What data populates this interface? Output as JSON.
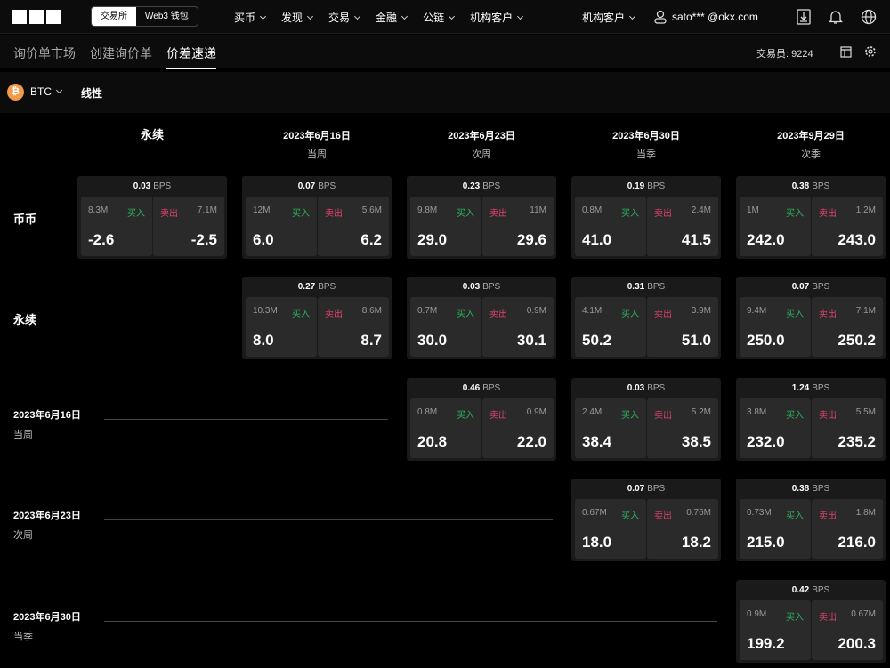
{
  "header": {
    "exchange_tab": "交易所",
    "web3_tab": "Web3 钱包",
    "nav": [
      "买币",
      "发现",
      "交易",
      "金融",
      "公链",
      "机构客户"
    ],
    "inst": "机构客户",
    "user": "sato*** @okx.com"
  },
  "subtabs": [
    "询价单市场",
    "创建询价单",
    "价差速递"
  ],
  "active_subtab": "价差速递",
  "trader": "交易员: 9224",
  "coin": {
    "symbol": "BTC",
    "type": "线性",
    "icon": "bitcoin-icon",
    "color": "#f2994a"
  },
  "colors": {
    "buy": "#2db35d",
    "sell": "#e0426b"
  },
  "labels": {
    "buy": "买入",
    "sell": "卖出",
    "unit": "BPS"
  },
  "columns": [
    {
      "title": "永续",
      "sub": ""
    },
    {
      "title": "2023年6月16日",
      "sub": "当周"
    },
    {
      "title": "2023年6月23日",
      "sub": "次周"
    },
    {
      "title": "2023年6月30日",
      "sub": "当季"
    },
    {
      "title": "2023年9月29日",
      "sub": "次季"
    }
  ],
  "rows": [
    {
      "title": "币币",
      "sub": "",
      "cells": [
        {
          "bps": "0.03",
          "bq": "8.3M",
          "sq": "7.1M",
          "bp": "-2.6",
          "sp": "-2.5"
        },
        {
          "bps": "0.07",
          "bq": "12M",
          "sq": "5.6M",
          "bp": "6.0",
          "sp": "6.2"
        },
        {
          "bps": "0.23",
          "bq": "9.8M",
          "sq": "11M",
          "bp": "29.0",
          "sp": "29.6"
        },
        {
          "bps": "0.19",
          "bq": "0.8M",
          "sq": "2.4M",
          "bp": "41.0",
          "sp": "41.5"
        },
        {
          "bps": "0.38",
          "bq": "1M",
          "sq": "1.2M",
          "bp": "242.0",
          "sp": "243.0"
        }
      ]
    },
    {
      "title": "永续",
      "sub": "",
      "cells": [
        null,
        {
          "bps": "0.27",
          "bq": "10.3M",
          "sq": "8.6M",
          "bp": "8.0",
          "sp": "8.7"
        },
        {
          "bps": "0.03",
          "bq": "0.7M",
          "sq": "0.9M",
          "bp": "30.0",
          "sp": "30.1"
        },
        {
          "bps": "0.31",
          "bq": "4.1M",
          "sq": "3.9M",
          "bp": "50.2",
          "sp": "51.0"
        },
        {
          "bps": "0.07",
          "bq": "9.4M",
          "sq": "7.1M",
          "bp": "250.0",
          "sp": "250.2"
        }
      ]
    },
    {
      "title": "2023年6月16日",
      "sub": "当周",
      "cells": [
        null,
        null,
        {
          "bps": "0.46",
          "bq": "0.8M",
          "sq": "0.9M",
          "bp": "20.8",
          "sp": "22.0"
        },
        {
          "bps": "0.03",
          "bq": "2.4M",
          "sq": "5.2M",
          "bp": "38.4",
          "sp": "38.5"
        },
        {
          "bps": "1.24",
          "bq": "3.8M",
          "sq": "5.5M",
          "bp": "232.0",
          "sp": "235.2"
        }
      ]
    },
    {
      "title": "2023年6月23日",
      "sub": "次周",
      "cells": [
        null,
        null,
        null,
        {
          "bps": "0.07",
          "bq": "0.67M",
          "sq": "0.76M",
          "bp": "18.0",
          "sp": "18.2"
        },
        {
          "bps": "0.38",
          "bq": "0.73M",
          "sq": "1.8M",
          "bp": "215.0",
          "sp": "216.0"
        }
      ]
    },
    {
      "title": "2023年6月30日",
      "sub": "当季",
      "cells": [
        null,
        null,
        null,
        null,
        {
          "bps": "0.42",
          "bq": "0.9M",
          "sq": "0.67M",
          "bp": "199.2",
          "sp": "200.3"
        }
      ]
    }
  ]
}
